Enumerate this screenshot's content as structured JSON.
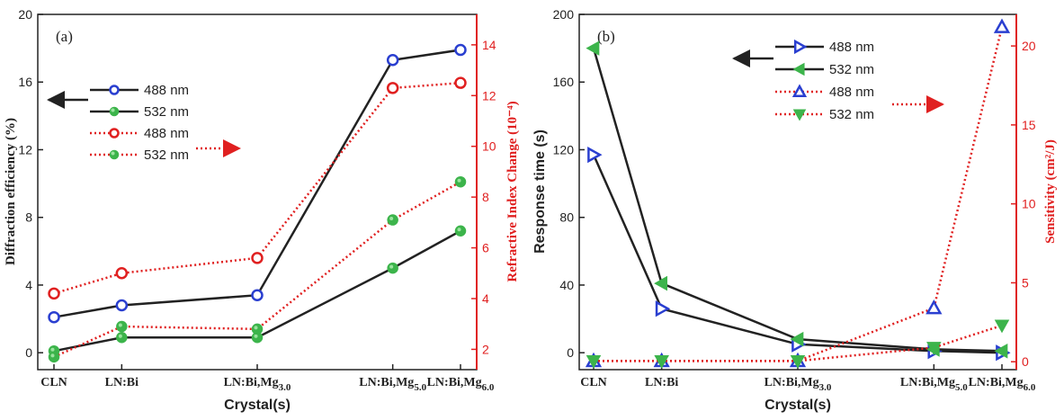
{
  "colors": {
    "black": "#222222",
    "red": "#e02020",
    "green": "#3cb44b",
    "blue": "#2a3fd0"
  },
  "chart_data": [
    {
      "panel": "(a)",
      "type": "line",
      "categories": [
        "CLN",
        "LN:Bi",
        "LN:Bi,Mg3.0",
        "LN:Bi,Mg5.0",
        "LN:Bi,Mg6.0"
      ],
      "category_labels": [
        {
          "base": "CLN",
          "sub": ""
        },
        {
          "base": "LN:Bi",
          "sub": ""
        },
        {
          "base": "LN:Bi,Mg",
          "sub": "3.0"
        },
        {
          "base": "LN:Bi,Mg",
          "sub": "5.0"
        },
        {
          "base": "LN:Bi,Mg",
          "sub": "6.0"
        }
      ],
      "x_positions": [
        0,
        1,
        3,
        5,
        6
      ],
      "xlabel": "Crystal(s)",
      "ylabel_left": "Diffraction efficiency (%)",
      "ylabel_right": "Refractive Index Change (10⁻⁴)",
      "ylim_left": [
        -1,
        20
      ],
      "yticks_left": [
        0,
        4,
        8,
        12,
        16,
        20
      ],
      "ylim_right": [
        1.2,
        15.2
      ],
      "yticks_right": [
        2,
        4,
        6,
        8,
        10,
        12,
        14
      ],
      "series": [
        {
          "name": "488 nm",
          "axis": "left",
          "marker": "circle-open",
          "color": "#2a3fd0",
          "line": "solid",
          "values": [
            2.1,
            2.8,
            3.4,
            17.3,
            17.9
          ]
        },
        {
          "name": "532 nm",
          "axis": "left",
          "marker": "circle-filled",
          "color": "#3cb44b",
          "line": "solid",
          "values": [
            0.1,
            0.9,
            0.9,
            5.0,
            7.2
          ]
        },
        {
          "name": "488 nm",
          "axis": "right",
          "marker": "circle-open",
          "color": "#e02020",
          "line": "dotted",
          "values": [
            4.2,
            5.0,
            5.6,
            12.3,
            12.5
          ]
        },
        {
          "name": "532 nm",
          "axis": "right",
          "marker": "circle-filled",
          "color": "#3cb44b",
          "line": "dotted",
          "values": [
            1.7,
            2.9,
            2.8,
            7.1,
            8.6
          ]
        }
      ]
    },
    {
      "panel": "(b)",
      "type": "line",
      "categories": [
        "CLN",
        "LN:Bi",
        "LN:Bi,Mg3.0",
        "LN:Bi,Mg5.0",
        "LN:Bi,Mg6.0"
      ],
      "category_labels": [
        {
          "base": "CLN",
          "sub": ""
        },
        {
          "base": "LN:Bi",
          "sub": ""
        },
        {
          "base": "LN:Bi,Mg",
          "sub": "3.0"
        },
        {
          "base": "LN:Bi,Mg",
          "sub": "5.0"
        },
        {
          "base": "LN:Bi,Mg",
          "sub": "6.0"
        }
      ],
      "x_positions": [
        0,
        1,
        3,
        5,
        6
      ],
      "xlabel": "Crystal(s)",
      "ylabel_left": "Response time (s)",
      "ylabel_right": "Sensitivity (cm²/J)",
      "ylim_left": [
        -10,
        200
      ],
      "yticks_left": [
        0,
        40,
        80,
        120,
        160,
        200
      ],
      "ylim_right": [
        -0.5,
        22
      ],
      "yticks_right": [
        0,
        5,
        10,
        15,
        20
      ],
      "series": [
        {
          "name": "488 nm",
          "axis": "left",
          "marker": "triangle-right-open",
          "color": "#2a3fd0",
          "line": "solid",
          "values": [
            117,
            26,
            5,
            1,
            0
          ]
        },
        {
          "name": "532 nm",
          "axis": "left",
          "marker": "triangle-left-filled",
          "color": "#3cb44b",
          "line": "solid",
          "values": [
            180,
            41,
            8,
            2,
            1
          ]
        },
        {
          "name": "488 nm",
          "axis": "right",
          "marker": "triangle-up-open",
          "color": "#2a3fd0",
          "line": "dotted",
          "values": [
            0.05,
            0.05,
            0.05,
            3.4,
            21.2
          ]
        },
        {
          "name": "532 nm",
          "axis": "right",
          "marker": "triangle-down-filled",
          "color": "#3cb44b",
          "line": "dotted",
          "values": [
            0.05,
            0.05,
            0.05,
            0.9,
            2.3
          ]
        }
      ]
    }
  ]
}
